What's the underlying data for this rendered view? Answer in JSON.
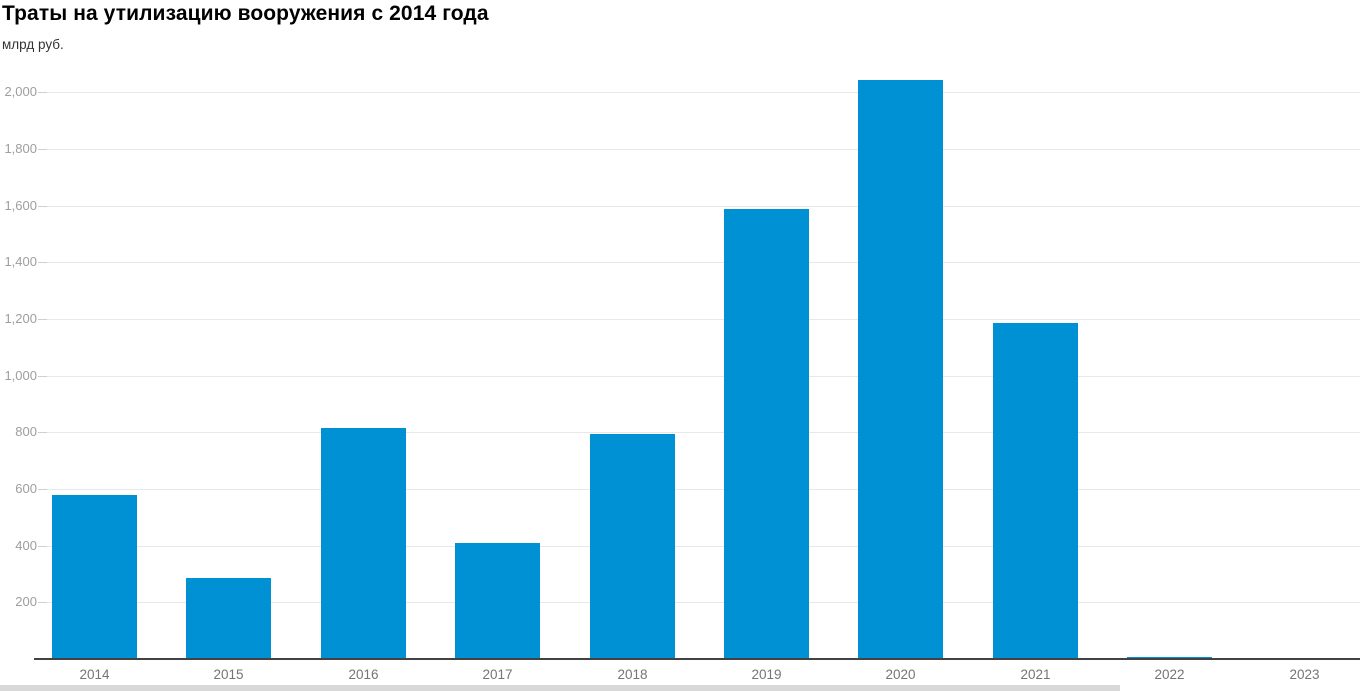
{
  "chart_data": {
    "type": "bar",
    "title": "Траты на утилизацию вооружения с 2014 года",
    "unit_label": "млрд руб.",
    "categories": [
      "2014",
      "2015",
      "2016",
      "2017",
      "2018",
      "2019",
      "2020",
      "2021",
      "2022",
      "2023"
    ],
    "values": [
      580,
      285,
      815,
      410,
      795,
      1590,
      2045,
      1185,
      8,
      0
    ],
    "ylim": [
      0,
      2100
    ],
    "yticks": [
      200,
      400,
      600,
      800,
      1000,
      1200,
      1400,
      1600,
      1800,
      2000
    ],
    "ytick_labels": [
      "200",
      "400",
      "600",
      "800",
      "1,000",
      "1,200",
      "1,400",
      "1,600",
      "1,800",
      "2,000"
    ],
    "grid": true,
    "legend": "none",
    "xlabel": "",
    "ylabel": "млрд руб."
  },
  "colors": {
    "bar": "#0091d5",
    "gridline": "#e8e8e8",
    "tick": "#cfcfcf",
    "axis_line": "#424242",
    "y_label": "#9e9e9e",
    "x_label": "#757575",
    "title": "#000000",
    "subtitle": "#333333",
    "bottom_strip": "#d8d8d8"
  }
}
